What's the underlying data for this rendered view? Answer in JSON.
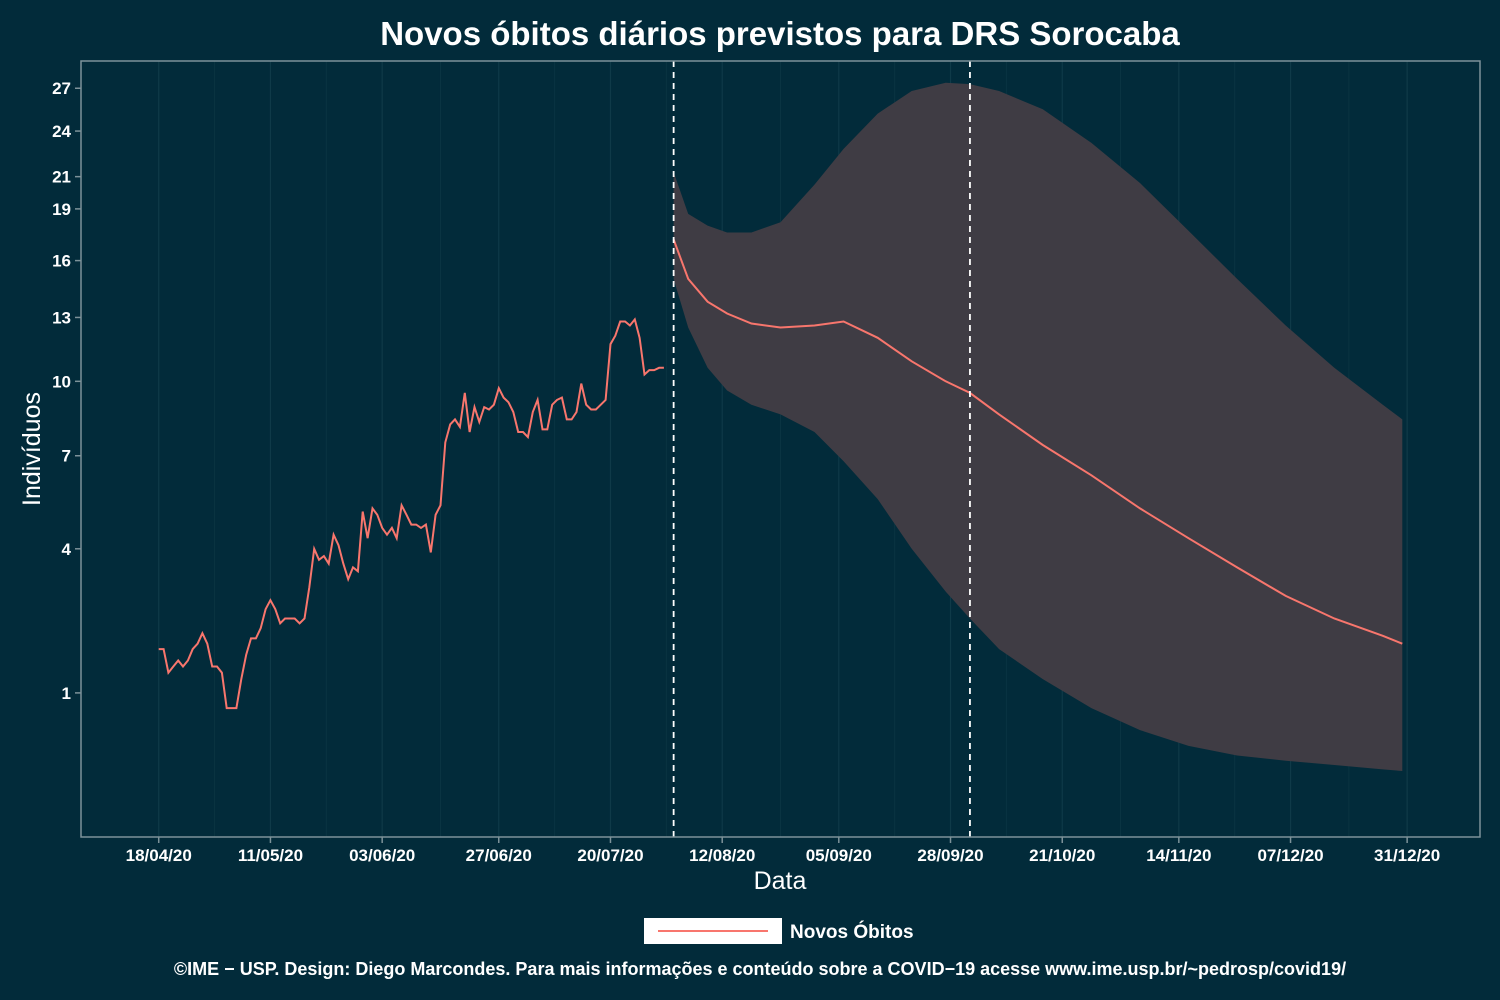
{
  "chart_data": {
    "type": "line",
    "title": "Novos óbitos diários previstos para DRS Sorocaba",
    "xlabel": "Data",
    "ylabel": "Indivíduos",
    "x_ticks": [
      "18/04/20",
      "11/05/20",
      "03/06/20",
      "27/06/20",
      "20/07/20",
      "12/08/20",
      "05/09/20",
      "28/09/20",
      "21/10/20",
      "14/11/20",
      "07/12/20",
      "31/12/20"
    ],
    "y_ticks": [
      1,
      4,
      7,
      10,
      13,
      16,
      19,
      21,
      24,
      27
    ],
    "y_scale": "sqrt",
    "ylim": [
      0,
      29
    ],
    "x_range": [
      "2020-04-02",
      "2021-01-15"
    ],
    "vlines": [
      "2020-08-02",
      "2020-10-02"
    ],
    "grid": true,
    "legend_position": "bottom",
    "series": [
      {
        "name": "Novos Óbitos",
        "color": "#f8766d",
        "observed": {
          "start": "2020-04-18",
          "values": [
            1.7,
            1.7,
            1.3,
            1.4,
            1.5,
            1.4,
            1.5,
            1.7,
            1.8,
            2.0,
            1.8,
            1.4,
            1.4,
            1.3,
            0.8,
            0.8,
            0.8,
            1.2,
            1.6,
            1.9,
            1.9,
            2.1,
            2.5,
            2.7,
            2.5,
            2.2,
            2.3,
            2.3,
            2.3,
            2.2,
            2.3,
            3.0,
            4.0,
            3.7,
            3.8,
            3.6,
            4.4,
            4.1,
            3.6,
            3.2,
            3.5,
            3.4,
            5.1,
            4.3,
            5.2,
            5.0,
            4.6,
            4.4,
            4.6,
            4.3,
            5.3,
            5.0,
            4.7,
            4.7,
            4.6,
            4.7,
            3.9,
            5.0,
            5.3,
            7.5,
            8.2,
            8.4,
            8.1,
            9.5,
            7.9,
            8.9,
            8.3,
            8.9,
            8.8,
            9.0,
            9.7,
            9.3,
            9.1,
            8.7,
            7.9,
            7.9,
            7.7,
            8.7,
            9.2,
            8.0,
            8.0,
            9.0,
            9.2,
            9.3,
            8.4,
            8.4,
            8.7,
            9.9,
            9.0,
            8.8,
            8.8,
            9.0,
            9.2,
            11.7,
            12.1,
            12.8,
            12.8,
            12.6,
            12.9,
            12.0,
            10.3,
            10.5,
            10.5,
            10.6,
            10.6
          ]
        },
        "forecast": [
          {
            "date": "2020-08-02",
            "mean": 17.2,
            "lower": 15.0,
            "upper": 21.3
          },
          {
            "date": "2020-08-05",
            "mean": 15.0,
            "lower": 12.5,
            "upper": 18.7
          },
          {
            "date": "2020-08-09",
            "mean": 13.8,
            "lower": 10.6,
            "upper": 18.0
          },
          {
            "date": "2020-08-13",
            "mean": 13.2,
            "lower": 9.6,
            "upper": 17.6
          },
          {
            "date": "2020-08-18",
            "mean": 12.7,
            "lower": 9.0,
            "upper": 17.6
          },
          {
            "date": "2020-08-24",
            "mean": 12.5,
            "lower": 8.6,
            "upper": 18.2
          },
          {
            "date": "2020-08-31",
            "mean": 12.6,
            "lower": 7.9,
            "upper": 20.5
          },
          {
            "date": "2020-09-06",
            "mean": 12.8,
            "lower": 6.8,
            "upper": 22.8
          },
          {
            "date": "2020-09-13",
            "mean": 12.0,
            "lower": 5.5,
            "upper": 25.2
          },
          {
            "date": "2020-09-20",
            "mean": 10.9,
            "lower": 4.0,
            "upper": 26.8
          },
          {
            "date": "2020-09-27",
            "mean": 10.0,
            "lower": 2.9,
            "upper": 27.4
          },
          {
            "date": "2020-10-02",
            "mean": 9.5,
            "lower": 2.3,
            "upper": 27.3
          },
          {
            "date": "2020-10-08",
            "mean": 8.6,
            "lower": 1.7,
            "upper": 26.8
          },
          {
            "date": "2020-10-17",
            "mean": 7.4,
            "lower": 1.2,
            "upper": 25.5
          },
          {
            "date": "2020-10-27",
            "mean": 6.3,
            "lower": 0.8,
            "upper": 23.2
          },
          {
            "date": "2020-11-06",
            "mean": 5.2,
            "lower": 0.55,
            "upper": 20.6
          },
          {
            "date": "2020-11-16",
            "mean": 4.3,
            "lower": 0.4,
            "upper": 17.7
          },
          {
            "date": "2020-11-26",
            "mean": 3.5,
            "lower": 0.32,
            "upper": 15.0
          },
          {
            "date": "2020-12-06",
            "mean": 2.8,
            "lower": 0.28,
            "upper": 12.6
          },
          {
            "date": "2020-12-16",
            "mean": 2.3,
            "lower": 0.25,
            "upper": 10.6
          },
          {
            "date": "2020-12-26",
            "mean": 1.95,
            "lower": 0.22,
            "upper": 9.0
          },
          {
            "date": "2020-12-30",
            "mean": 1.8,
            "lower": 0.21,
            "upper": 8.4
          }
        ]
      }
    ],
    "band_color": "#3f3c44",
    "credit": "©IME − USP. Design: Diego Marcondes. Para mais informações e conteúdo sobre a COVID−19 acesse www.ime.usp.br/~pedrosp/covid19/"
  }
}
